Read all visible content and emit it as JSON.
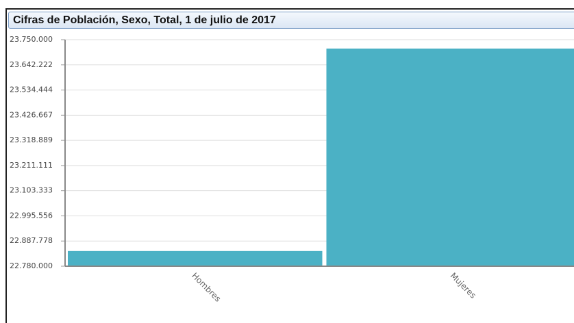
{
  "chart_data": {
    "type": "bar",
    "title": "Cifras de Población, Sexo, Total, 1 de julio de 2017",
    "categories": [
      "Hombres",
      "Mujeres"
    ],
    "values": [
      22845000,
      23712000
    ],
    "color": "#4bb1c5",
    "ylim": [
      22780000,
      23750000
    ],
    "yticks": [
      {
        "value": 22780000,
        "label": "22.780.000"
      },
      {
        "value": 22887778,
        "label": "22.887.778"
      },
      {
        "value": 22995556,
        "label": "22.995.556"
      },
      {
        "value": 23103333,
        "label": "23.103.333"
      },
      {
        "value": 23211111,
        "label": "23.211.111"
      },
      {
        "value": 23318889,
        "label": "23.318.889"
      },
      {
        "value": 23426667,
        "label": "23.426.667"
      },
      {
        "value": 23534444,
        "label": "23.534.444"
      },
      {
        "value": 23642222,
        "label": "23.642.222"
      },
      {
        "value": 23750000,
        "label": "23.750.000"
      }
    ],
    "grid": true
  }
}
